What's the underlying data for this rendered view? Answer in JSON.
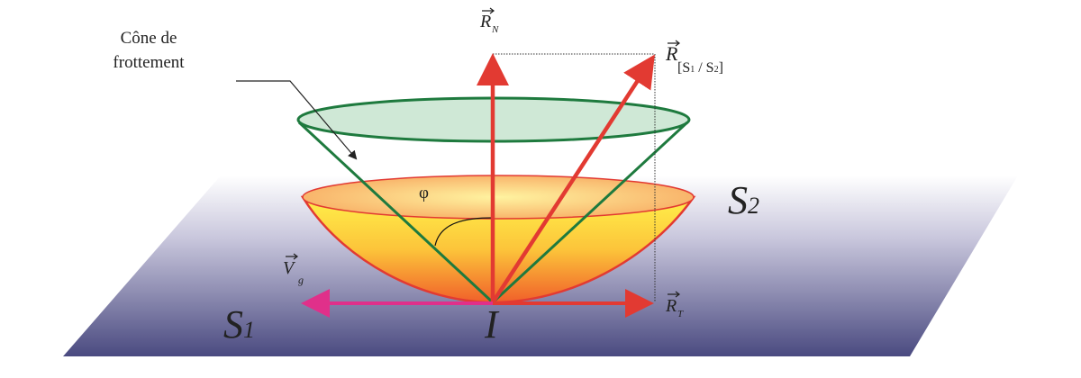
{
  "labels": {
    "cone_line1": "Cône de",
    "cone_line2": "frottement",
    "normal": "R",
    "normal_sub": "N",
    "resultant": "R",
    "resultant_sub": "[S",
    "resultant_sub1": "1",
    "resultant_sep": " / S",
    "resultant_sub2": "2",
    "resultant_close": "]",
    "tangential": "R",
    "tangential_sub": "T",
    "velocity": "V",
    "velocity_sub": "g",
    "angle": "φ",
    "solid1": "S",
    "solid1_sub": "1",
    "solid2": "S",
    "solid2_sub": "2",
    "contact_point": "I"
  },
  "colors": {
    "force_arrow": "#e23a32",
    "velocity_arrow": "#e0308a",
    "cone_edge": "#1e7a3e",
    "cone_fill": "#cfe8d6",
    "bowl_top": "#ffe44a",
    "bowl_bottom": "#f07a30",
    "plane_top": "#ffffff",
    "plane_bottom": "#4a4a80"
  }
}
